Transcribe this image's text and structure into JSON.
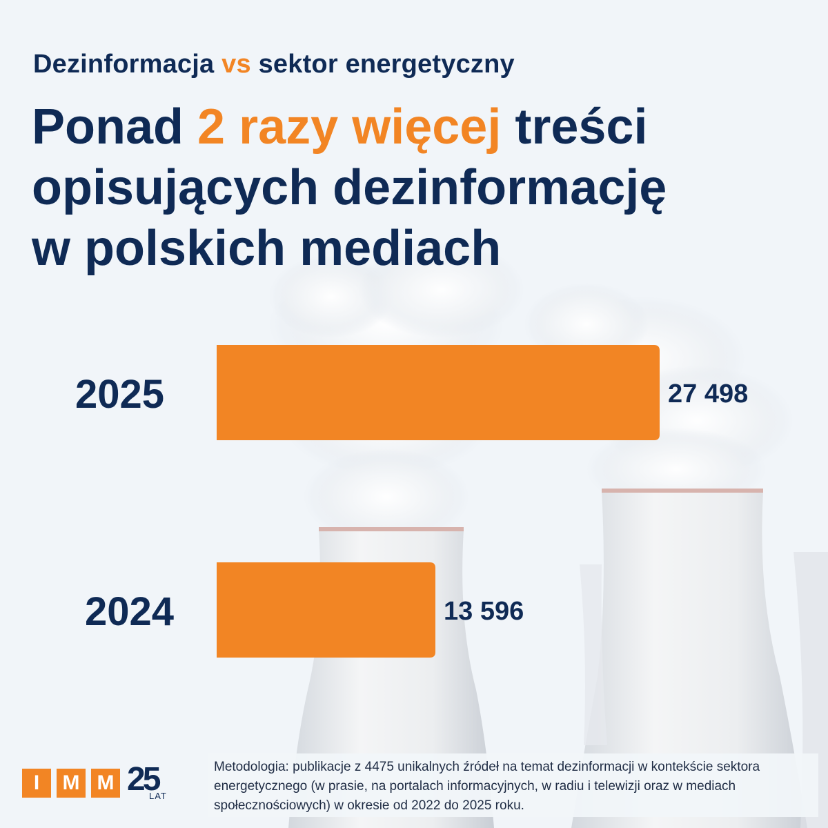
{
  "header": {
    "kicker_a": "Dezinformacja",
    "kicker_vs": "vs",
    "kicker_b": "sektor energetyczny",
    "title_part1": "Ponad",
    "title_highlight": "2 razy więcej",
    "title_part2": "treści",
    "title_line2": "opisujących dezinformację",
    "title_line3": "w polskich mediach"
  },
  "colors": {
    "navy": "#0f2a55",
    "orange": "#f28524",
    "background": "#f1f5f9"
  },
  "chart_data": {
    "type": "bar",
    "orientation": "horizontal",
    "categories": [
      "2025",
      "2024"
    ],
    "values": [
      27498,
      13596
    ],
    "value_labels": [
      "27 498",
      "13 596"
    ],
    "xlim": [
      0,
      27498
    ]
  },
  "footer": {
    "methodology_label": "Metodologia:",
    "methodology_text": "publikacje z 4475 unikalnych źródeł na temat dezinformacji w kontekście sektora energetycznego (w prasie, na portalach informacyjnych, w radiu i telewizji oraz w mediach społecznościowych) w okresie od 2022 do 2025 roku."
  },
  "logo": {
    "letters": [
      "I",
      "M",
      "M"
    ],
    "number": "25",
    "suffix": "LAT"
  }
}
